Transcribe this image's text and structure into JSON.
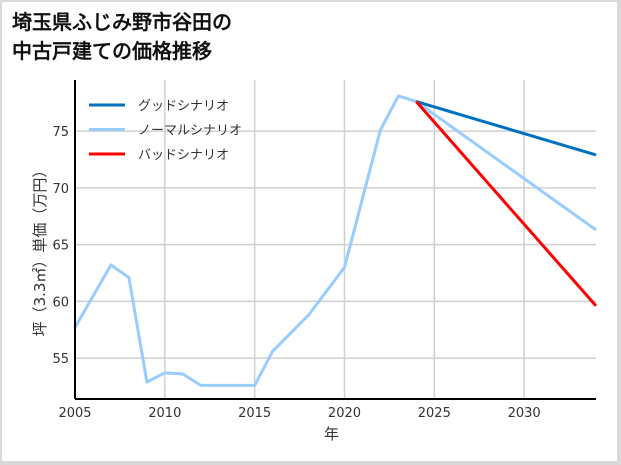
{
  "title": "埼玉県ふじみ野市谷田の\n中古戸建ての価格推移",
  "chart_data": {
    "type": "line",
    "title": "埼玉県ふじみ野市谷田の中古戸建ての価格推移",
    "xlabel": "年",
    "ylabel": "坪（3.3㎡）単価（万円）",
    "xlim": [
      2005,
      2034
    ],
    "ylim": [
      51.4,
      79.5
    ],
    "xticks": [
      2005,
      2010,
      2015,
      2020,
      2025,
      2030
    ],
    "yticks": [
      55,
      60,
      65,
      70,
      75
    ],
    "grid": true,
    "legend_position": "upper left",
    "series": [
      {
        "name": "グッドシナリオ",
        "color": "#0070C0",
        "x": [
          2024,
          2034
        ],
        "values": [
          77.6,
          72.9
        ]
      },
      {
        "name": "ノーマルシナリオ",
        "color": "#99CCFF",
        "x": [
          2005,
          2007,
          2008,
          2009,
          2010,
          2011,
          2012,
          2015,
          2016,
          2018,
          2020,
          2022,
          2023,
          2024,
          2034
        ],
        "values": [
          57.7,
          63.2,
          62.1,
          52.9,
          53.7,
          53.6,
          52.6,
          52.6,
          55.6,
          58.8,
          63.0,
          75.1,
          78.1,
          77.6,
          66.3
        ]
      },
      {
        "name": "バッドシナリオ",
        "color": "#FF0000",
        "x": [
          2024,
          2034
        ],
        "values": [
          77.6,
          59.6
        ]
      }
    ]
  }
}
